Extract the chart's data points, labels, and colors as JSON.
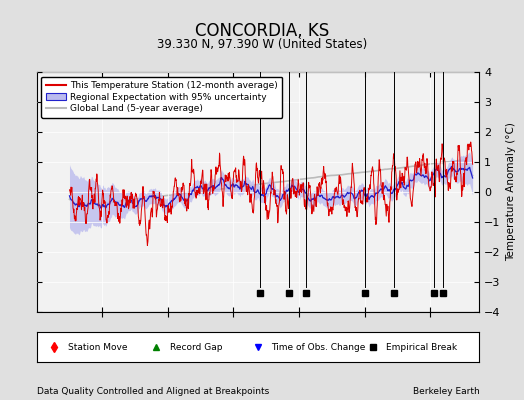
{
  "title": "CONCORDIA, KS",
  "subtitle": "39.330 N, 97.390 W (United States)",
  "ylabel": "Temperature Anomaly (°C)",
  "xlabel_left": "Data Quality Controlled and Aligned at Breakpoints",
  "xlabel_right": "Berkeley Earth",
  "ylim": [
    -4,
    4
  ],
  "xlim": [
    1880,
    2015
  ],
  "yticks": [
    -4,
    -3,
    -2,
    -1,
    0,
    1,
    2,
    3,
    4
  ],
  "xticks": [
    1900,
    1920,
    1940,
    1960,
    1980,
    2000
  ],
  "bg_color": "#e0e0e0",
  "plot_bg_color": "#f2f2f2",
  "red_line_color": "#dd0000",
  "blue_line_color": "#2222cc",
  "blue_fill_color": "#bbbbee",
  "gray_line_color": "#bbbbbb",
  "empirical_break_years": [
    1948,
    1957,
    1962,
    1980,
    1989,
    2001,
    2004
  ],
  "marker_y": -3.35,
  "seed": 17
}
